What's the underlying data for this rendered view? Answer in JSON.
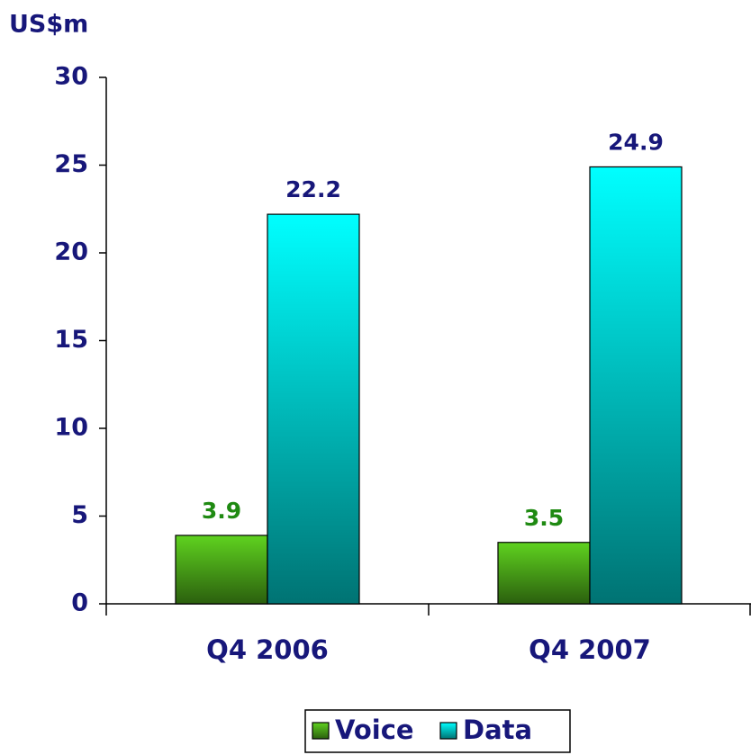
{
  "chart_data": {
    "type": "bar",
    "y_label": "US$m",
    "categories": [
      "Q4 2006",
      "Q4 2007"
    ],
    "series": [
      {
        "name": "Voice",
        "color": "#5fd21f",
        "values": [
          3.9,
          3.5
        ]
      },
      {
        "name": "Data",
        "color": "#00ffff",
        "values": [
          22.2,
          24.9
        ]
      }
    ],
    "label_colors": [
      "#1f8a12",
      "#17177a"
    ],
    "ylim": [
      0,
      30
    ],
    "yticks": [
      0,
      5,
      10,
      15,
      20,
      25,
      30
    ],
    "grid": false,
    "legend": "bottom"
  }
}
